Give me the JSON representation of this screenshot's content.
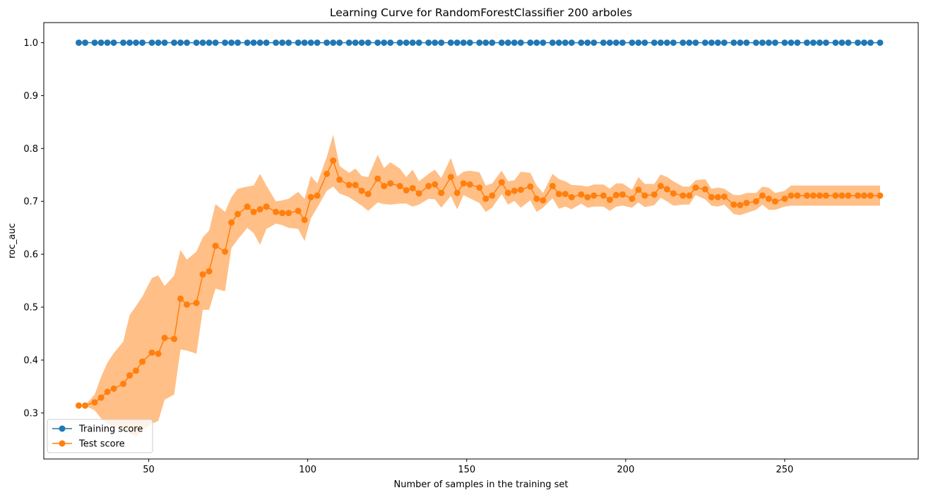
{
  "chart_data": {
    "type": "line",
    "title": "Learning Curve for RandomForestClassifier 200 arboles",
    "xlabel": "Number of samples in the training set",
    "ylabel": "roc_auc",
    "xlim": [
      17,
      292
    ],
    "ylim": [
      0.213,
      1.038
    ],
    "xticks": [
      50,
      100,
      150,
      200,
      250
    ],
    "yticks": [
      0.3,
      0.4,
      0.5,
      0.6,
      0.7,
      0.8,
      0.9,
      1.0
    ],
    "ytick_labels": [
      "0.3",
      "0.4",
      "0.5",
      "0.6",
      "0.7",
      "0.8",
      "0.9",
      "1.0"
    ],
    "legend": {
      "location": "lower-left"
    },
    "grid": false,
    "x": [
      28,
      30,
      33,
      35,
      37,
      39,
      42,
      44,
      46,
      48,
      51,
      53,
      55,
      58,
      60,
      62,
      65,
      67,
      69,
      71,
      74,
      76,
      78,
      81,
      83,
      85,
      87,
      90,
      92,
      94,
      97,
      99,
      101,
      103,
      106,
      108,
      110,
      113,
      115,
      117,
      119,
      122,
      124,
      126,
      129,
      131,
      133,
      135,
      138,
      140,
      142,
      145,
      147,
      149,
      151,
      154,
      156,
      158,
      161,
      163,
      165,
      167,
      170,
      172,
      174,
      177,
      179,
      181,
      183,
      186,
      188,
      190,
      193,
      195,
      197,
      199,
      202,
      204,
      206,
      209,
      211,
      213,
      215,
      218,
      220,
      222,
      225,
      227,
      229,
      231,
      234,
      236,
      238,
      241,
      243,
      245,
      247,
      250,
      252,
      254,
      257,
      259,
      261,
      263,
      266,
      268,
      270,
      273,
      275,
      277,
      280
    ],
    "series": [
      {
        "name": "Training score",
        "color": "#1f77b4",
        "values": [
          1,
          1,
          1,
          1,
          1,
          1,
          1,
          1,
          1,
          1,
          1,
          1,
          1,
          1,
          1,
          1,
          1,
          1,
          1,
          1,
          1,
          1,
          1,
          1,
          1,
          1,
          1,
          1,
          1,
          1,
          1,
          1,
          1,
          1,
          1,
          1,
          1,
          1,
          1,
          1,
          1,
          1,
          1,
          1,
          1,
          1,
          1,
          1,
          1,
          1,
          1,
          1,
          1,
          1,
          1,
          1,
          1,
          1,
          1,
          1,
          1,
          1,
          1,
          1,
          1,
          1,
          1,
          1,
          1,
          1,
          1,
          1,
          1,
          1,
          1,
          1,
          1,
          1,
          1,
          1,
          1,
          1,
          1,
          1,
          1,
          1,
          1,
          1,
          1,
          1,
          1,
          1,
          1,
          1,
          1,
          1,
          1,
          1,
          1,
          1,
          1,
          1,
          1,
          1,
          1,
          1,
          1,
          1,
          1,
          1,
          1
        ]
      },
      {
        "name": "Test score",
        "color": "#ff7f0e",
        "band_color": "#ffbf86",
        "values": [
          0.314,
          0.314,
          0.32,
          0.329,
          0.34,
          0.346,
          0.355,
          0.371,
          0.38,
          0.397,
          0.414,
          0.412,
          0.442,
          0.44,
          0.516,
          0.505,
          0.508,
          0.562,
          0.568,
          0.616,
          0.605,
          0.66,
          0.676,
          0.69,
          0.68,
          0.685,
          0.69,
          0.68,
          0.678,
          0.678,
          0.682,
          0.665,
          0.708,
          0.711,
          0.752,
          0.777,
          0.741,
          0.731,
          0.731,
          0.72,
          0.714,
          0.743,
          0.729,
          0.734,
          0.729,
          0.721,
          0.725,
          0.715,
          0.729,
          0.732,
          0.716,
          0.746,
          0.716,
          0.734,
          0.732,
          0.726,
          0.705,
          0.711,
          0.736,
          0.716,
          0.72,
          0.722,
          0.728,
          0.705,
          0.702,
          0.729,
          0.714,
          0.714,
          0.708,
          0.713,
          0.708,
          0.711,
          0.711,
          0.703,
          0.712,
          0.713,
          0.705,
          0.722,
          0.711,
          0.713,
          0.729,
          0.723,
          0.715,
          0.711,
          0.711,
          0.726,
          0.723,
          0.708,
          0.708,
          0.709,
          0.694,
          0.693,
          0.697,
          0.7,
          0.711,
          0.705,
          0.7,
          0.705,
          0.711,
          0.711,
          0.711,
          0.711,
          0.711,
          0.711,
          0.711,
          0.711,
          0.711,
          0.711,
          0.711,
          0.711,
          0.711
        ],
        "lower": [
          0.314,
          0.314,
          0.305,
          0.29,
          0.28,
          0.275,
          0.27,
          0.262,
          0.255,
          0.268,
          0.28,
          0.285,
          0.325,
          0.335,
          0.42,
          0.418,
          0.412,
          0.495,
          0.495,
          0.535,
          0.53,
          0.612,
          0.628,
          0.65,
          0.64,
          0.618,
          0.648,
          0.658,
          0.655,
          0.65,
          0.648,
          0.625,
          0.668,
          0.688,
          0.72,
          0.728,
          0.715,
          0.708,
          0.7,
          0.692,
          0.682,
          0.698,
          0.695,
          0.694,
          0.696,
          0.696,
          0.69,
          0.694,
          0.705,
          0.704,
          0.688,
          0.71,
          0.685,
          0.712,
          0.706,
          0.697,
          0.68,
          0.688,
          0.714,
          0.694,
          0.701,
          0.688,
          0.702,
          0.68,
          0.688,
          0.706,
          0.686,
          0.69,
          0.685,
          0.696,
          0.688,
          0.69,
          0.69,
          0.682,
          0.69,
          0.692,
          0.688,
          0.698,
          0.689,
          0.693,
          0.707,
          0.7,
          0.692,
          0.694,
          0.694,
          0.712,
          0.704,
          0.692,
          0.69,
          0.694,
          0.676,
          0.674,
          0.678,
          0.684,
          0.694,
          0.684,
          0.684,
          0.69,
          0.692,
          0.692,
          0.692,
          0.692,
          0.692,
          0.692,
          0.692,
          0.692,
          0.692,
          0.692,
          0.692,
          0.692,
          0.692
        ],
        "upper": [
          0.314,
          0.314,
          0.335,
          0.368,
          0.395,
          0.413,
          0.435,
          0.485,
          0.502,
          0.52,
          0.555,
          0.56,
          0.54,
          0.56,
          0.608,
          0.59,
          0.605,
          0.632,
          0.645,
          0.695,
          0.68,
          0.708,
          0.724,
          0.728,
          0.73,
          0.752,
          0.73,
          0.7,
          0.702,
          0.705,
          0.718,
          0.705,
          0.748,
          0.734,
          0.784,
          0.826,
          0.767,
          0.754,
          0.762,
          0.748,
          0.746,
          0.788,
          0.763,
          0.774,
          0.762,
          0.746,
          0.76,
          0.738,
          0.752,
          0.76,
          0.744,
          0.782,
          0.747,
          0.756,
          0.758,
          0.755,
          0.73,
          0.734,
          0.758,
          0.738,
          0.74,
          0.756,
          0.754,
          0.73,
          0.716,
          0.752,
          0.742,
          0.738,
          0.731,
          0.73,
          0.728,
          0.732,
          0.732,
          0.724,
          0.734,
          0.734,
          0.722,
          0.746,
          0.733,
          0.733,
          0.751,
          0.746,
          0.738,
          0.728,
          0.728,
          0.74,
          0.742,
          0.724,
          0.726,
          0.724,
          0.712,
          0.712,
          0.716,
          0.716,
          0.728,
          0.726,
          0.716,
          0.72,
          0.73,
          0.73,
          0.73,
          0.73,
          0.73,
          0.73,
          0.73,
          0.73,
          0.73,
          0.73,
          0.73,
          0.73,
          0.73
        ]
      }
    ]
  }
}
